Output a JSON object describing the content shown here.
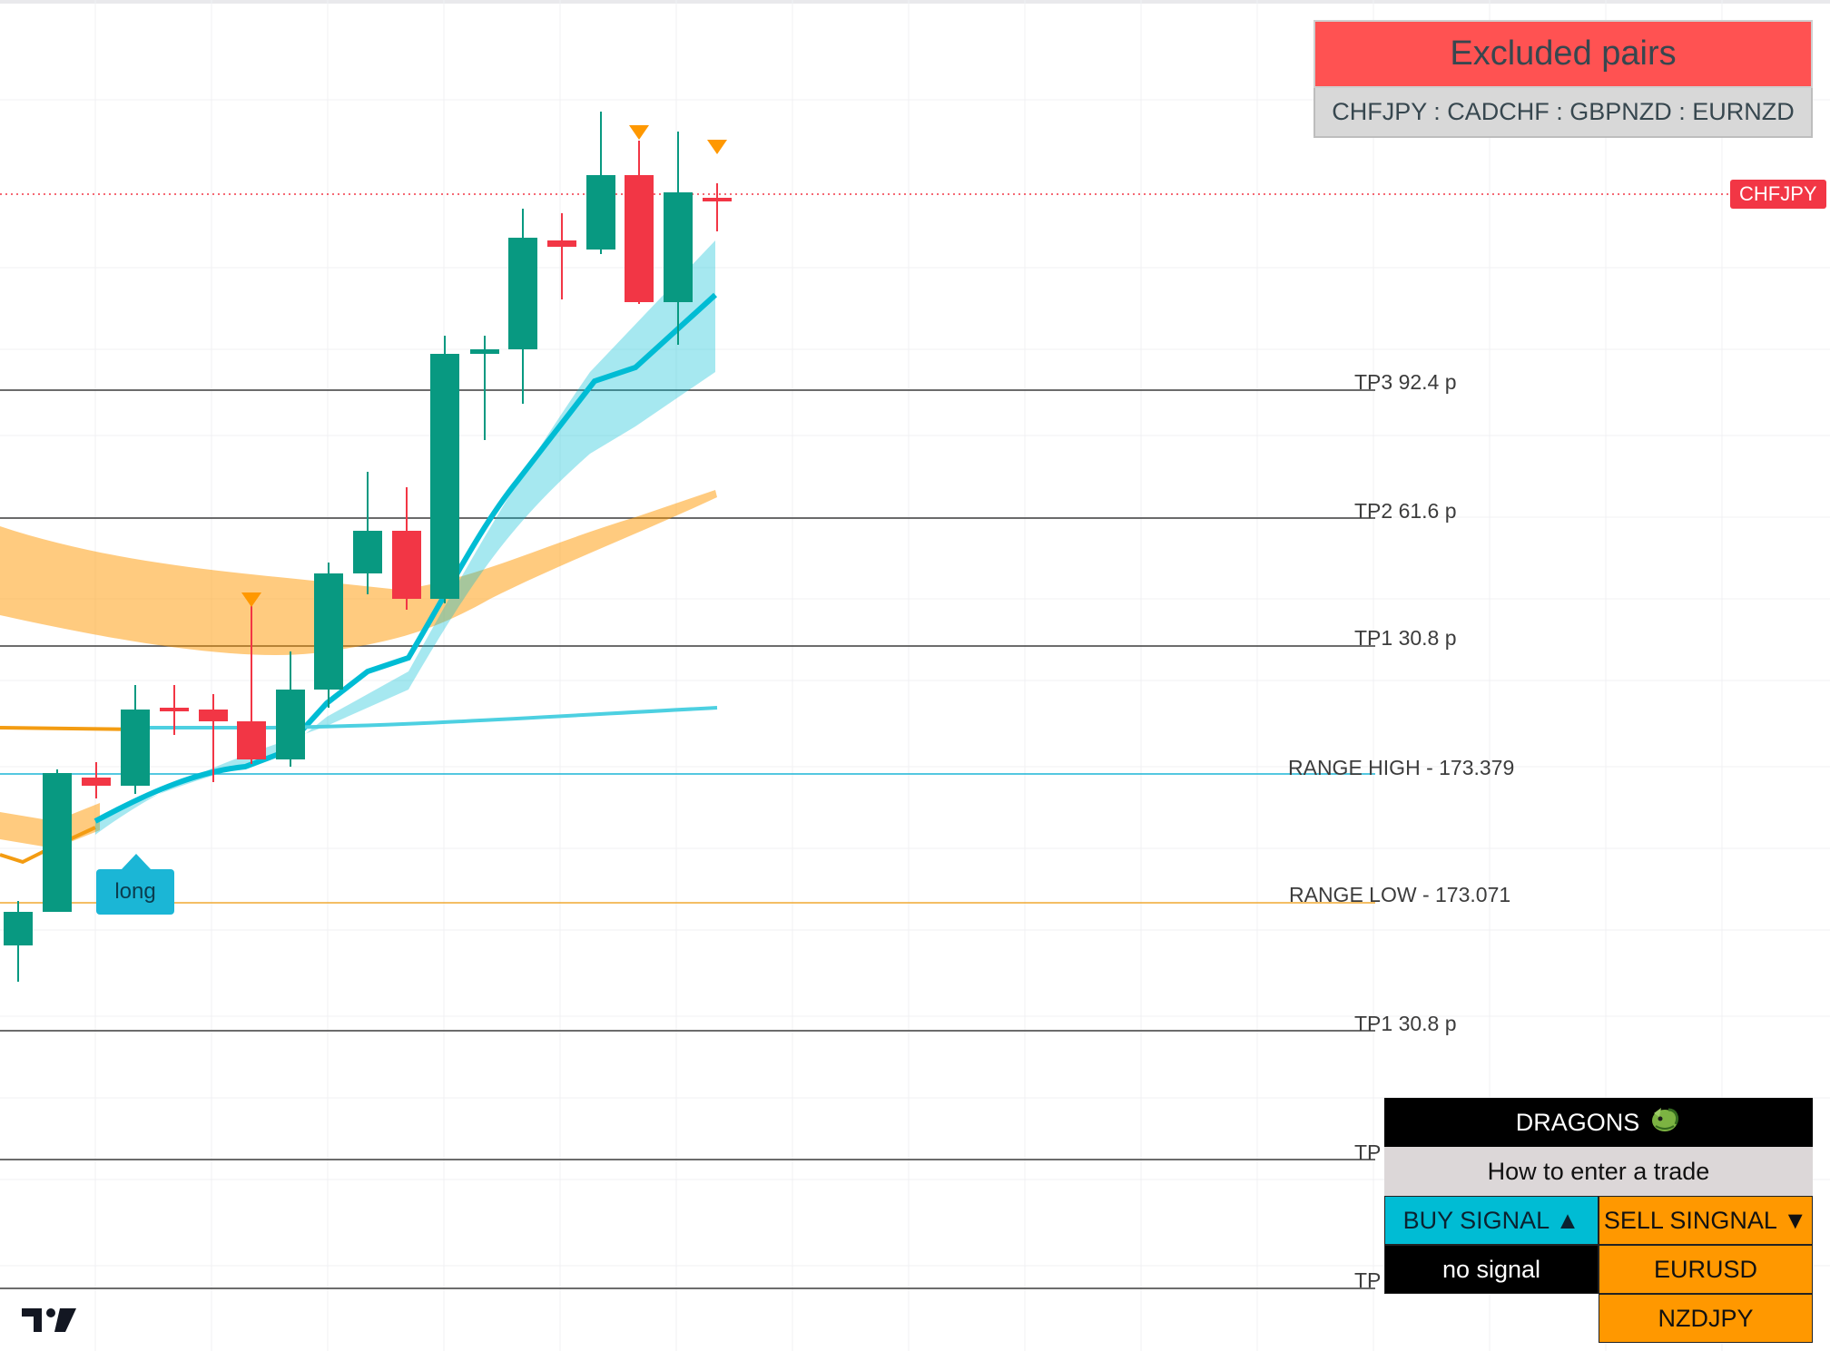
{
  "excluded": {
    "title": "Excluded pairs",
    "pairs": "CHFJPY : CADCHF : GBPNZD : EURNZD",
    "color": "#ff5252"
  },
  "price_label": {
    "text": "CHFJPY",
    "color": "#f23645"
  },
  "levels": {
    "tp3_upper": "TP3 92.4 p",
    "tp2_upper": "TP2 61.6 p",
    "tp1_upper": "TP1 30.8 p",
    "range_high": "RANGE HIGH - 173.379",
    "range_low": "RANGE LOW - 173.071",
    "tp1_lower": "TP1 30.8 p",
    "tp2_lower": "TP",
    "tp3_lower": "TP"
  },
  "signal_tag": {
    "text": "long",
    "color": "#1bb6d6"
  },
  "dragons": {
    "title": "DRAGONS",
    "icon": "dragon-icon",
    "subtitle": "How to enter a trade",
    "buy_header": "BUY SIGNAL ▲",
    "sell_header": "SELL SINGNAL ▼",
    "buy_values": [
      "no signal"
    ],
    "sell_values": [
      "EURUSD",
      "NZDJPY"
    ]
  },
  "colors": {
    "bull": "#089981",
    "bear": "#f23645",
    "blue_band": "#00bcd4",
    "orange_band": "#ff9800"
  },
  "logo": "tradingview-logo-icon"
}
